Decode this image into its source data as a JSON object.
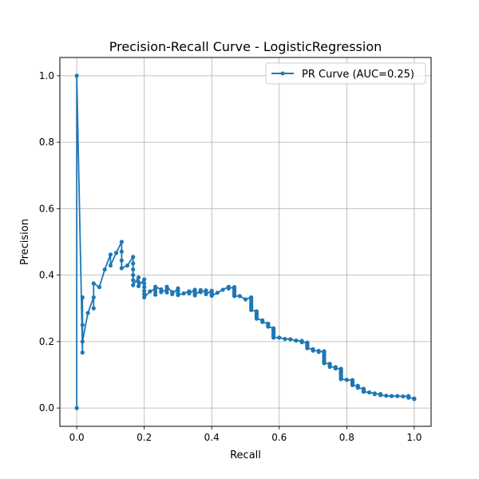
{
  "chart_data": {
    "type": "line",
    "title": "Precision-Recall Curve - LogisticRegression",
    "xlabel": "Recall",
    "ylabel": "Precision",
    "xlim": [
      -0.05,
      1.05
    ],
    "ylim": [
      -0.055,
      1.055
    ],
    "xticks": [
      0.0,
      0.2,
      0.4,
      0.6,
      0.8,
      1.0
    ],
    "xtick_labels": [
      "0.0",
      "0.2",
      "0.4",
      "0.6",
      "0.8",
      "1.0"
    ],
    "yticks": [
      0.0,
      0.2,
      0.4,
      0.6,
      0.8,
      1.0
    ],
    "ytick_labels": [
      "0.0",
      "0.2",
      "0.4",
      "0.6",
      "0.8",
      "1.0"
    ],
    "grid": true,
    "legend_position": "top-right",
    "series": [
      {
        "name": "PR Curve (AUC=0.25)",
        "color": "#1f77b4",
        "marker": "circle",
        "points": [
          [
            0.0,
            0.0
          ],
          [
            0.0,
            1.0
          ],
          [
            0.017,
            0.167
          ],
          [
            0.017,
            0.333
          ],
          [
            0.017,
            0.25
          ],
          [
            0.017,
            0.2
          ],
          [
            0.033,
            0.286
          ],
          [
            0.05,
            0.333
          ],
          [
            0.05,
            0.3
          ],
          [
            0.05,
            0.375
          ],
          [
            0.067,
            0.364
          ],
          [
            0.083,
            0.417
          ],
          [
            0.1,
            0.462
          ],
          [
            0.1,
            0.429
          ],
          [
            0.117,
            0.467
          ],
          [
            0.133,
            0.5
          ],
          [
            0.133,
            0.471
          ],
          [
            0.133,
            0.444
          ],
          [
            0.133,
            0.421
          ],
          [
            0.15,
            0.429
          ],
          [
            0.167,
            0.455
          ],
          [
            0.167,
            0.435
          ],
          [
            0.167,
            0.417
          ],
          [
            0.167,
            0.4
          ],
          [
            0.167,
            0.385
          ],
          [
            0.167,
            0.37
          ],
          [
            0.183,
            0.393
          ],
          [
            0.183,
            0.379
          ],
          [
            0.183,
            0.367
          ],
          [
            0.2,
            0.387
          ],
          [
            0.2,
            0.375
          ],
          [
            0.2,
            0.364
          ],
          [
            0.2,
            0.353
          ],
          [
            0.2,
            0.343
          ],
          [
            0.2,
            0.333
          ],
          [
            0.217,
            0.351
          ],
          [
            0.233,
            0.359
          ],
          [
            0.233,
            0.35
          ],
          [
            0.233,
            0.341
          ],
          [
            0.233,
            0.365
          ],
          [
            0.25,
            0.357
          ],
          [
            0.25,
            0.349
          ],
          [
            0.267,
            0.356
          ],
          [
            0.267,
            0.348
          ],
          [
            0.267,
            0.365
          ],
          [
            0.283,
            0.349
          ],
          [
            0.283,
            0.343
          ],
          [
            0.3,
            0.36
          ],
          [
            0.3,
            0.353
          ],
          [
            0.3,
            0.346
          ],
          [
            0.3,
            0.34
          ],
          [
            0.317,
            0.345
          ],
          [
            0.333,
            0.351
          ],
          [
            0.333,
            0.345
          ],
          [
            0.35,
            0.356
          ],
          [
            0.35,
            0.35
          ],
          [
            0.35,
            0.344
          ],
          [
            0.35,
            0.339
          ],
          [
            0.367,
            0.355
          ],
          [
            0.367,
            0.349
          ],
          [
            0.383,
            0.354
          ],
          [
            0.383,
            0.348
          ],
          [
            0.383,
            0.343
          ],
          [
            0.4,
            0.353
          ],
          [
            0.4,
            0.348
          ],
          [
            0.4,
            0.343
          ],
          [
            0.4,
            0.338
          ],
          [
            0.417,
            0.347
          ],
          [
            0.433,
            0.356
          ],
          [
            0.45,
            0.365
          ],
          [
            0.45,
            0.36
          ],
          [
            0.467,
            0.364
          ],
          [
            0.467,
            0.359
          ],
          [
            0.467,
            0.354
          ],
          [
            0.467,
            0.35
          ],
          [
            0.467,
            0.345
          ],
          [
            0.467,
            0.341
          ],
          [
            0.467,
            0.337
          ],
          [
            0.483,
            0.337
          ],
          [
            0.5,
            0.327
          ],
          [
            0.517,
            0.333
          ],
          [
            0.517,
            0.326
          ],
          [
            0.517,
            0.32
          ],
          [
            0.517,
            0.313
          ],
          [
            0.517,
            0.307
          ],
          [
            0.517,
            0.301
          ],
          [
            0.517,
            0.295
          ],
          [
            0.533,
            0.291
          ],
          [
            0.533,
            0.285
          ],
          [
            0.533,
            0.28
          ],
          [
            0.533,
            0.274
          ],
          [
            0.533,
            0.269
          ],
          [
            0.55,
            0.264
          ],
          [
            0.55,
            0.259
          ],
          [
            0.567,
            0.254
          ],
          [
            0.567,
            0.249
          ],
          [
            0.567,
            0.245
          ],
          [
            0.583,
            0.24
          ],
          [
            0.583,
            0.236
          ],
          [
            0.583,
            0.232
          ],
          [
            0.583,
            0.228
          ],
          [
            0.583,
            0.224
          ],
          [
            0.583,
            0.22
          ],
          [
            0.583,
            0.216
          ],
          [
            0.583,
            0.212
          ],
          [
            0.6,
            0.212
          ],
          [
            0.617,
            0.208
          ],
          [
            0.633,
            0.207
          ],
          [
            0.65,
            0.203
          ],
          [
            0.667,
            0.202
          ],
          [
            0.667,
            0.198
          ],
          [
            0.683,
            0.197
          ],
          [
            0.683,
            0.193
          ],
          [
            0.683,
            0.19
          ],
          [
            0.683,
            0.187
          ],
          [
            0.683,
            0.183
          ],
          [
            0.683,
            0.18
          ],
          [
            0.7,
            0.177
          ],
          [
            0.7,
            0.173
          ],
          [
            0.717,
            0.172
          ],
          [
            0.717,
            0.169
          ],
          [
            0.733,
            0.171
          ],
          [
            0.733,
            0.167
          ],
          [
            0.733,
            0.163
          ],
          [
            0.733,
            0.158
          ],
          [
            0.733,
            0.153
          ],
          [
            0.733,
            0.148
          ],
          [
            0.733,
            0.143
          ],
          [
            0.733,
            0.139
          ],
          [
            0.733,
            0.135
          ],
          [
            0.75,
            0.133
          ],
          [
            0.75,
            0.128
          ],
          [
            0.75,
            0.124
          ],
          [
            0.767,
            0.123
          ],
          [
            0.767,
            0.119
          ],
          [
            0.783,
            0.118
          ],
          [
            0.783,
            0.114
          ],
          [
            0.783,
            0.11
          ],
          [
            0.783,
            0.106
          ],
          [
            0.783,
            0.102
          ],
          [
            0.783,
            0.098
          ],
          [
            0.783,
            0.094
          ],
          [
            0.783,
            0.09
          ],
          [
            0.783,
            0.087
          ],
          [
            0.8,
            0.085
          ],
          [
            0.817,
            0.084
          ],
          [
            0.817,
            0.081
          ],
          [
            0.817,
            0.078
          ],
          [
            0.817,
            0.075
          ],
          [
            0.817,
            0.072
          ],
          [
            0.817,
            0.069
          ],
          [
            0.833,
            0.067
          ],
          [
            0.833,
            0.064
          ],
          [
            0.833,
            0.061
          ],
          [
            0.85,
            0.058
          ],
          [
            0.85,
            0.055
          ],
          [
            0.85,
            0.052
          ],
          [
            0.85,
            0.049
          ],
          [
            0.867,
            0.047
          ],
          [
            0.883,
            0.044
          ],
          [
            0.883,
            0.042
          ],
          [
            0.9,
            0.042
          ],
          [
            0.9,
            0.039
          ],
          [
            0.917,
            0.037
          ],
          [
            0.933,
            0.036
          ],
          [
            0.95,
            0.036
          ],
          [
            0.967,
            0.035
          ],
          [
            0.983,
            0.036
          ],
          [
            0.983,
            0.033
          ],
          [
            0.983,
            0.031
          ],
          [
            1.0,
            0.029
          ],
          [
            1.0,
            0.027
          ]
        ]
      }
    ]
  }
}
